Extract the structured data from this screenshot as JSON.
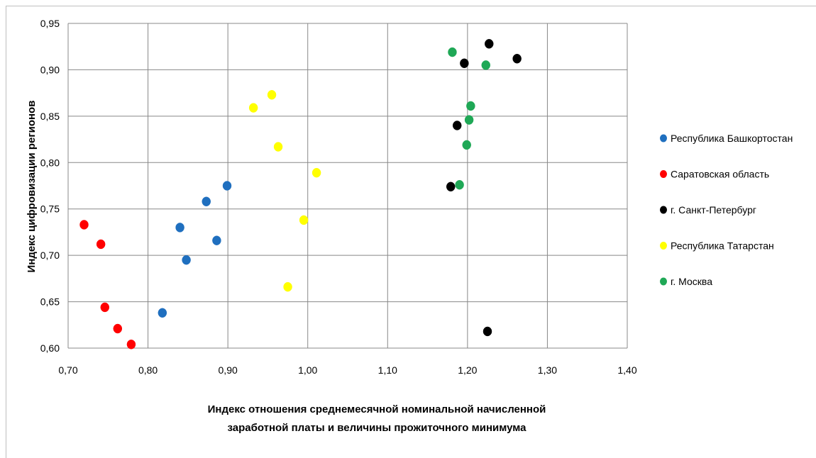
{
  "chart_data": {
    "type": "scatter",
    "title": "",
    "xlabel_lines": [
      "Индекс отношения среднемесячной номинальной начисленной",
      "заработной платы и величины прожиточного минимума"
    ],
    "ylabel": "Индекс цифровизации регионов",
    "xlim": [
      0.7,
      1.4
    ],
    "ylim": [
      0.6,
      0.95
    ],
    "xticks": [
      "0,70",
      "0,80",
      "0,90",
      "1,00",
      "1,10",
      "1,20",
      "1,30",
      "1,40"
    ],
    "yticks": [
      "0,60",
      "0,65",
      "0,70",
      "0,75",
      "0,80",
      "0,85",
      "0,90",
      "0,95"
    ],
    "grid": true,
    "legend_position": "right",
    "series": [
      {
        "name": "Республика Башкортостан",
        "color": "#1f6fbf",
        "points": [
          [
            0.818,
            0.638
          ],
          [
            0.848,
            0.695
          ],
          [
            0.84,
            0.73
          ],
          [
            0.873,
            0.758
          ],
          [
            0.886,
            0.716
          ],
          [
            0.899,
            0.775
          ]
        ]
      },
      {
        "name": "Саратовская область",
        "color": "#ff0000",
        "points": [
          [
            0.72,
            0.733
          ],
          [
            0.741,
            0.712
          ],
          [
            0.746,
            0.644
          ],
          [
            0.762,
            0.621
          ],
          [
            0.779,
            0.604
          ]
        ]
      },
      {
        "name": "г. Санкт-Петербург",
        "color": "#000000",
        "points": [
          [
            1.179,
            0.774
          ],
          [
            1.187,
            0.84
          ],
          [
            1.196,
            0.907
          ],
          [
            1.227,
            0.928
          ],
          [
            1.262,
            0.912
          ],
          [
            1.225,
            0.618
          ]
        ]
      },
      {
        "name": "Республика Татарстан",
        "color": "#ffff00",
        "points": [
          [
            0.932,
            0.859
          ],
          [
            0.955,
            0.873
          ],
          [
            0.963,
            0.817
          ],
          [
            1.011,
            0.789
          ],
          [
            0.995,
            0.738
          ],
          [
            0.975,
            0.666
          ]
        ]
      },
      {
        "name": "г. Москва",
        "color": "#1fa856",
        "points": [
          [
            1.181,
            0.919
          ],
          [
            1.223,
            0.905
          ],
          [
            1.204,
            0.861
          ],
          [
            1.202,
            0.846
          ],
          [
            1.199,
            0.819
          ],
          [
            1.19,
            0.776
          ]
        ]
      }
    ]
  }
}
